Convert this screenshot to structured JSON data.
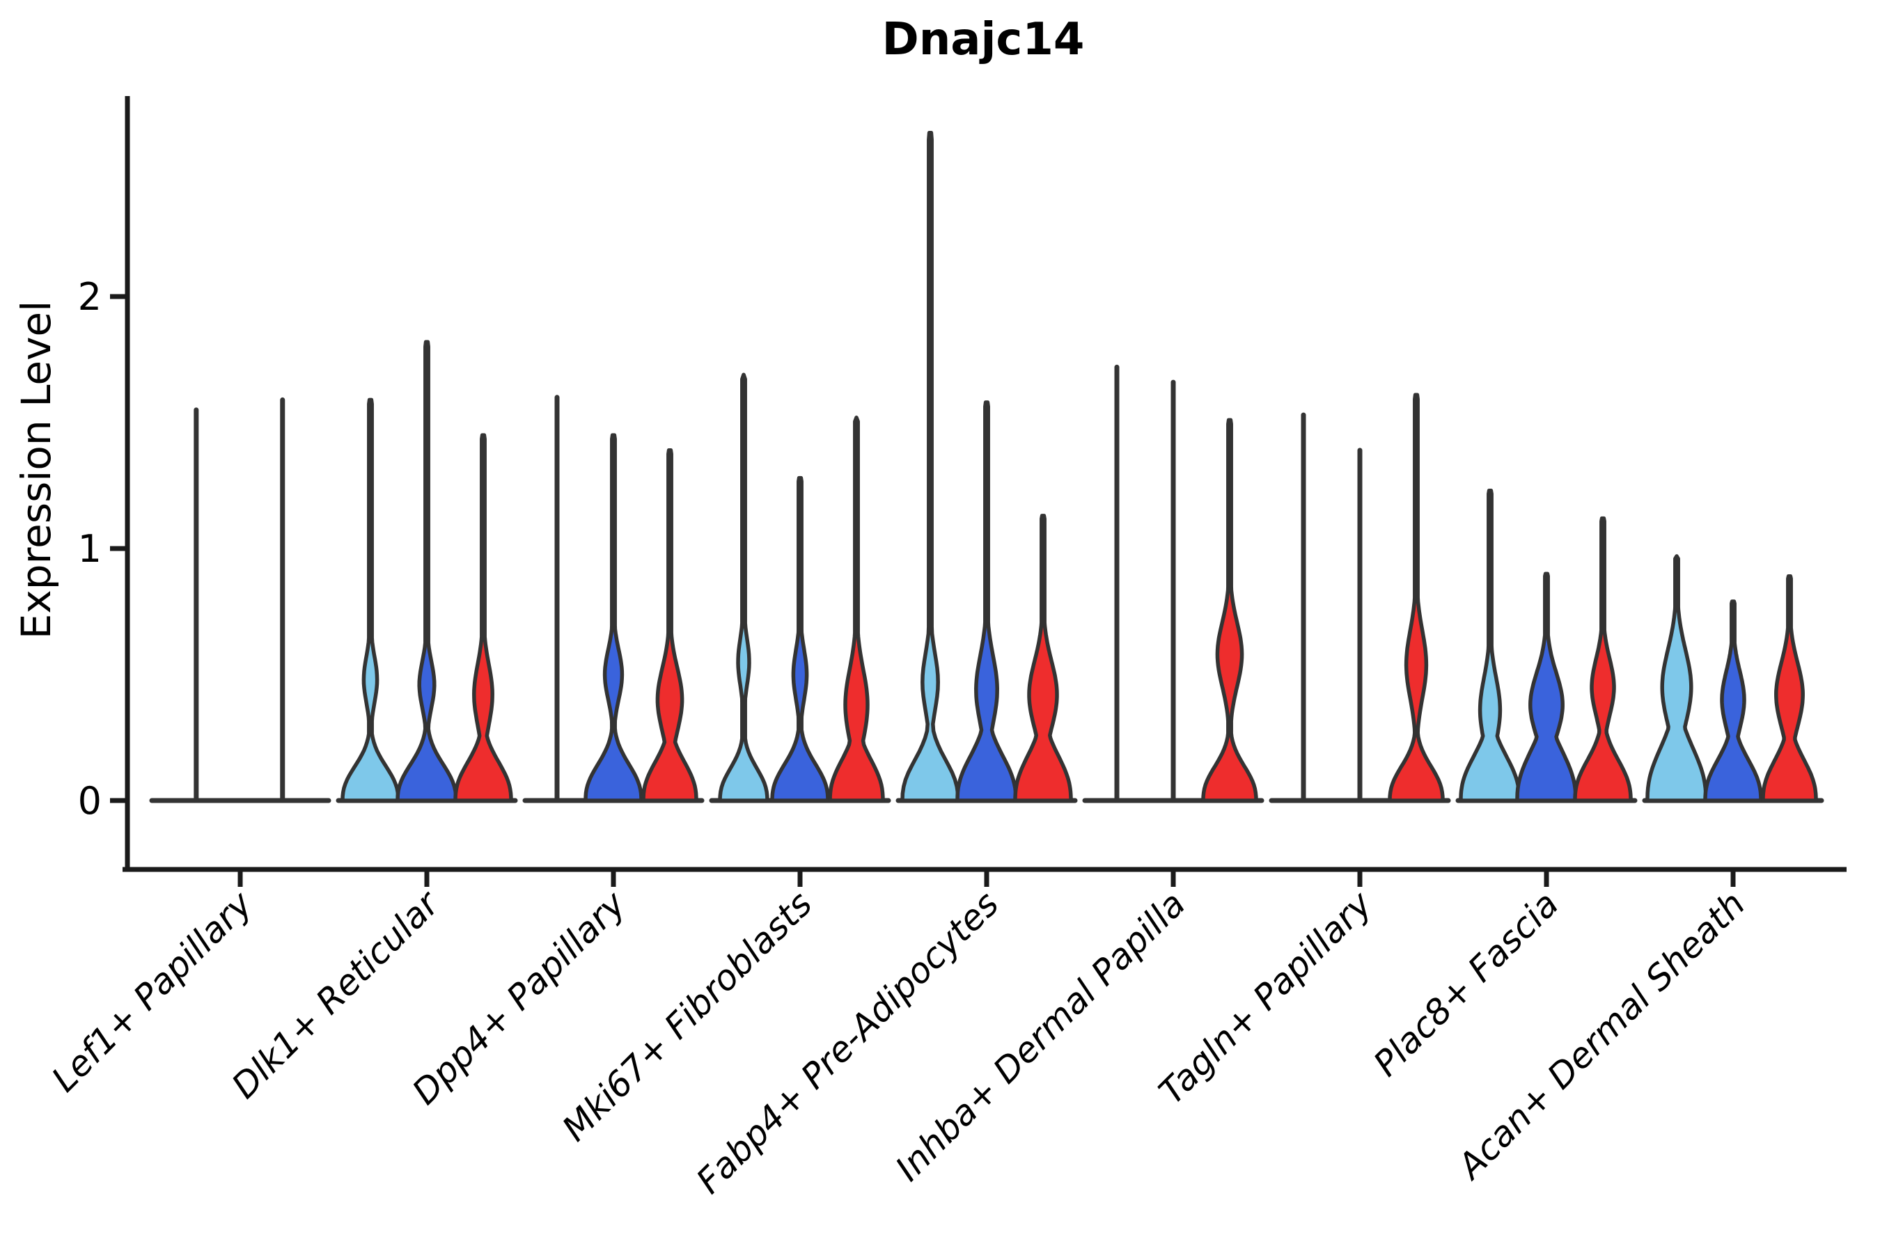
{
  "title": "Dnajc14",
  "y_axis": {
    "label": "Expression Level",
    "tick_labels": [
      "0",
      "1",
      "2"
    ]
  },
  "chart_data": {
    "type": "violin",
    "title": "Dnajc14",
    "xlabel": "",
    "ylabel": "Expression Level",
    "ylim": [
      0,
      2.9
    ],
    "yticks": [
      0,
      1,
      2
    ],
    "grid": false,
    "legend": "none",
    "outline_color": "#333333",
    "series_colors": {
      "light_blue": "#7EC8EA",
      "blue": "#3A63DC",
      "red": "#EE2D2D"
    },
    "categories": [
      "Lef1+ Papillary",
      "Dlk1+ Reticular",
      "Dpp4+ Papillary",
      "Mki67+ Fibroblasts",
      "Fabp4+ Pre-Adipocytes",
      "Inhba+ Dermal Papilla",
      "Tagln+ Papillary",
      "Plac8+ Fascia",
      "Acan+ Dermal Sheath"
    ],
    "groups": [
      {
        "label": "Lef1+ Papillary",
        "violins": [
          {
            "color": null,
            "shape": "spike",
            "max": 1.55,
            "mode": 0,
            "slot": -0.78
          },
          {
            "color": null,
            "shape": "spike",
            "max": 1.59,
            "mode": 0,
            "slot": 0.75
          }
        ]
      },
      {
        "label": "Dlk1+ Reticular",
        "violins": [
          {
            "color": "light_blue",
            "shape": "violin",
            "max": 1.59,
            "mode": 0.48,
            "bulge_sigma": 0.13,
            "bulge_width": 0.24,
            "base_width": 1.0,
            "base_height": 0.17,
            "slot": -1
          },
          {
            "color": "blue",
            "shape": "violin",
            "max": 1.82,
            "mode": 0.46,
            "bulge_sigma": 0.13,
            "bulge_width": 0.27,
            "base_width": 1.05,
            "base_height": 0.18,
            "slot": 0
          },
          {
            "color": "red",
            "shape": "violin",
            "max": 1.45,
            "mode": 0.42,
            "bulge_sigma": 0.17,
            "bulge_width": 0.33,
            "base_width": 1.0,
            "base_height": 0.19,
            "slot": 1
          }
        ]
      },
      {
        "label": "Dpp4+ Papillary",
        "violins": [
          {
            "color": null,
            "shape": "spike",
            "max": 1.6,
            "mode": 0,
            "slot": -1
          },
          {
            "color": "blue",
            "shape": "violin",
            "max": 1.45,
            "mode": 0.5,
            "bulge_sigma": 0.14,
            "bulge_width": 0.31,
            "base_width": 1.0,
            "base_height": 0.18,
            "slot": 0
          },
          {
            "color": "red",
            "shape": "violin",
            "max": 1.39,
            "mode": 0.4,
            "bulge_sigma": 0.18,
            "bulge_width": 0.44,
            "base_width": 0.95,
            "base_height": 0.19,
            "slot": 1
          }
        ]
      },
      {
        "label": "Mki67+ Fibroblasts",
        "violins": [
          {
            "color": "light_blue",
            "shape": "violin",
            "max": 1.69,
            "mode": 0.55,
            "bulge_sigma": 0.13,
            "bulge_width": 0.2,
            "base_width": 0.85,
            "base_height": 0.16,
            "slot": -1
          },
          {
            "color": "blue",
            "shape": "violin",
            "max": 1.28,
            "mode": 0.5,
            "bulge_sigma": 0.14,
            "bulge_width": 0.24,
            "base_width": 1.0,
            "base_height": 0.18,
            "slot": 0
          },
          {
            "color": "red",
            "shape": "violin",
            "max": 1.52,
            "mode": 0.38,
            "bulge_sigma": 0.2,
            "bulge_width": 0.4,
            "base_width": 0.95,
            "base_height": 0.2,
            "slot": 1
          }
        ]
      },
      {
        "label": "Fabp4+ Pre-Adipocytes",
        "violins": [
          {
            "color": "light_blue",
            "shape": "violin",
            "max": 2.65,
            "mode": 0.47,
            "bulge_sigma": 0.16,
            "bulge_width": 0.28,
            "base_width": 1.0,
            "base_height": 0.2,
            "slot": -1
          },
          {
            "color": "blue",
            "shape": "violin",
            "max": 1.58,
            "mode": 0.44,
            "bulge_sigma": 0.19,
            "bulge_width": 0.38,
            "base_width": 1.05,
            "base_height": 0.22,
            "slot": 0
          },
          {
            "color": "red",
            "shape": "violin",
            "max": 1.13,
            "mode": 0.42,
            "bulge_sigma": 0.19,
            "bulge_width": 0.5,
            "base_width": 1.0,
            "base_height": 0.22,
            "slot": 1
          }
        ]
      },
      {
        "label": "Inhba+ Dermal Papilla",
        "violins": [
          {
            "color": null,
            "shape": "spike",
            "max": 1.72,
            "mode": 0,
            "slot": -1
          },
          {
            "color": null,
            "shape": "spike",
            "max": 1.66,
            "mode": 0,
            "slot": 0
          },
          {
            "color": "red",
            "shape": "violin",
            "max": 1.51,
            "mode": 0.58,
            "bulge_sigma": 0.18,
            "bulge_width": 0.44,
            "base_width": 0.95,
            "base_height": 0.17,
            "slot": 1
          }
        ]
      },
      {
        "label": "Tagln+ Papillary",
        "violins": [
          {
            "color": null,
            "shape": "spike",
            "max": 1.53,
            "mode": 0,
            "slot": -1
          },
          {
            "color": null,
            "shape": "spike",
            "max": 1.39,
            "mode": 0,
            "slot": 0
          },
          {
            "color": "red",
            "shape": "violin",
            "max": 1.61,
            "mode": 0.54,
            "bulge_sigma": 0.19,
            "bulge_width": 0.36,
            "base_width": 0.95,
            "base_height": 0.17,
            "slot": 1
          }
        ]
      },
      {
        "label": "Plac8+ Fascia",
        "violins": [
          {
            "color": "light_blue",
            "shape": "violin",
            "max": 1.23,
            "mode": 0.36,
            "bulge_sigma": 0.18,
            "bulge_width": 0.36,
            "base_width": 1.05,
            "base_height": 0.22,
            "slot": -1
          },
          {
            "color": "blue",
            "shape": "violin",
            "max": 0.9,
            "mode": 0.38,
            "bulge_sigma": 0.18,
            "bulge_width": 0.58,
            "base_width": 1.05,
            "base_height": 0.24,
            "slot": 0
          },
          {
            "color": "red",
            "shape": "violin",
            "max": 1.12,
            "mode": 0.45,
            "bulge_sigma": 0.16,
            "bulge_width": 0.4,
            "base_width": 1.0,
            "base_height": 0.2,
            "slot": 1
          }
        ]
      },
      {
        "label": "Acan+ Dermal Sheath",
        "violins": [
          {
            "color": "light_blue",
            "shape": "violin",
            "max": 0.97,
            "mode": 0.45,
            "bulge_sigma": 0.21,
            "bulge_width": 0.52,
            "base_width": 1.05,
            "base_height": 0.26,
            "slot": -1
          },
          {
            "color": "blue",
            "shape": "violin",
            "max": 0.79,
            "mode": 0.4,
            "bulge_sigma": 0.16,
            "bulge_width": 0.4,
            "base_width": 1.0,
            "base_height": 0.2,
            "slot": 0
          },
          {
            "color": "red",
            "shape": "violin",
            "max": 0.89,
            "mode": 0.42,
            "bulge_sigma": 0.18,
            "bulge_width": 0.48,
            "base_width": 0.95,
            "base_height": 0.2,
            "slot": 1
          }
        ]
      }
    ]
  }
}
